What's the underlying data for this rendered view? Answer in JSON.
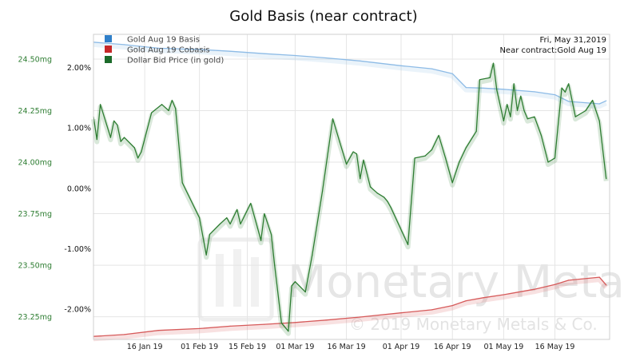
{
  "chart_data": {
    "type": "line",
    "title": "Gold Basis (near contract)",
    "annotation": {
      "date": "Fri, May 31,2019",
      "contract": "Near contract:Gold Aug 19"
    },
    "watermark": {
      "brand": "Monetary Metals",
      "copyright": "© 2019 Monetary Metals & Co."
    },
    "legend_position": "top-left",
    "grid": true,
    "x_axis": {
      "range": [
        "2019-01-01",
        "2019-06-01"
      ],
      "ticks": [
        {
          "date": "2019-01-16",
          "label": "16 Jan 19"
        },
        {
          "date": "2019-02-01",
          "label": "01 Feb 19"
        },
        {
          "date": "2019-02-15",
          "label": "15 Feb 19"
        },
        {
          "date": "2019-03-01",
          "label": "01 Mar 19"
        },
        {
          "date": "2019-03-16",
          "label": "16 Mar 19"
        },
        {
          "date": "2019-04-01",
          "label": "01 Apr 19"
        },
        {
          "date": "2019-04-16",
          "label": "16 Apr 19"
        },
        {
          "date": "2019-05-01",
          "label": "01 May 19"
        },
        {
          "date": "2019-05-16",
          "label": "16 May 19"
        }
      ]
    },
    "y_left": {
      "unit": "mg",
      "range": [
        23.14,
        24.62
      ],
      "ticks": [
        {
          "value": 24.5,
          "label": "24.50mg"
        },
        {
          "value": 24.25,
          "label": "24.25mg"
        },
        {
          "value": 24.0,
          "label": "24.00mg"
        },
        {
          "value": 23.75,
          "label": "23.75mg"
        },
        {
          "value": 23.5,
          "label": "23.50mg"
        },
        {
          "value": 23.25,
          "label": "23.25mg"
        }
      ]
    },
    "y_right": {
      "unit": "%",
      "range": [
        -2.5,
        2.55
      ],
      "ticks": [
        {
          "value": 2.0,
          "label": "2.00%"
        },
        {
          "value": 1.0,
          "label": "1.00%"
        },
        {
          "value": 0.0,
          "label": "0.00%"
        },
        {
          "value": -1.0,
          "label": "-1.00%"
        },
        {
          "value": -2.0,
          "label": "-2.00%"
        }
      ]
    },
    "colors": {
      "left_axis_text": "#2e7d32",
      "right_axis_text": "#111111",
      "grid": "#e5e5e5"
    },
    "series": [
      {
        "name": "Gold Aug 19 Basis",
        "color": "#2f7fc9",
        "line_color": "#8dbbe6",
        "axis": "right",
        "points": [
          [
            "2019-01-01",
            2.42
          ],
          [
            "2019-01-10",
            2.38
          ],
          [
            "2019-01-20",
            2.32
          ],
          [
            "2019-02-01",
            2.3
          ],
          [
            "2019-02-10",
            2.27
          ],
          [
            "2019-02-20",
            2.23
          ],
          [
            "2019-03-01",
            2.2
          ],
          [
            "2019-03-10",
            2.16
          ],
          [
            "2019-03-20",
            2.11
          ],
          [
            "2019-04-01",
            2.03
          ],
          [
            "2019-04-10",
            1.98
          ],
          [
            "2019-04-16",
            1.9
          ],
          [
            "2019-04-20",
            1.67
          ],
          [
            "2019-04-25",
            1.66
          ],
          [
            "2019-05-01",
            1.64
          ],
          [
            "2019-05-10",
            1.6
          ],
          [
            "2019-05-16",
            1.55
          ],
          [
            "2019-05-20",
            1.44
          ],
          [
            "2019-05-29",
            1.4
          ],
          [
            "2019-05-31",
            1.45
          ]
        ]
      },
      {
        "name": "Gold Aug 19 Cobasis",
        "color": "#c62828",
        "line_color": "#d65a5a",
        "axis": "right",
        "points": [
          [
            "2019-01-01",
            -2.45
          ],
          [
            "2019-01-10",
            -2.42
          ],
          [
            "2019-01-20",
            -2.35
          ],
          [
            "2019-02-01",
            -2.32
          ],
          [
            "2019-02-10",
            -2.28
          ],
          [
            "2019-02-20",
            -2.25
          ],
          [
            "2019-03-01",
            -2.22
          ],
          [
            "2019-03-10",
            -2.18
          ],
          [
            "2019-03-20",
            -2.13
          ],
          [
            "2019-04-01",
            -2.06
          ],
          [
            "2019-04-10",
            -2.01
          ],
          [
            "2019-04-16",
            -1.94
          ],
          [
            "2019-04-20",
            -1.86
          ],
          [
            "2019-04-25",
            -1.81
          ],
          [
            "2019-05-01",
            -1.76
          ],
          [
            "2019-05-10",
            -1.67
          ],
          [
            "2019-05-16",
            -1.59
          ],
          [
            "2019-05-20",
            -1.52
          ],
          [
            "2019-05-29",
            -1.47
          ],
          [
            "2019-05-31",
            -1.6
          ]
        ]
      },
      {
        "name": "Dollar Bid Price (in gold)",
        "color": "#1b6b2a",
        "line_color": "#2e7d32",
        "axis": "left",
        "points": [
          [
            "2019-01-01",
            24.22
          ],
          [
            "2019-01-02",
            24.11
          ],
          [
            "2019-01-03",
            24.28
          ],
          [
            "2019-01-06",
            24.12
          ],
          [
            "2019-01-07",
            24.2
          ],
          [
            "2019-01-08",
            24.18
          ],
          [
            "2019-01-09",
            24.1
          ],
          [
            "2019-01-10",
            24.12
          ],
          [
            "2019-01-13",
            24.07
          ],
          [
            "2019-01-14",
            24.02
          ],
          [
            "2019-01-15",
            24.05
          ],
          [
            "2019-01-18",
            24.24
          ],
          [
            "2019-01-21",
            24.28
          ],
          [
            "2019-01-23",
            24.25
          ],
          [
            "2019-01-24",
            24.3
          ],
          [
            "2019-01-25",
            24.26
          ],
          [
            "2019-01-27",
            23.9
          ],
          [
            "2019-02-01",
            23.73
          ],
          [
            "2019-02-03",
            23.55
          ],
          [
            "2019-02-04",
            23.65
          ],
          [
            "2019-02-07",
            23.7
          ],
          [
            "2019-02-09",
            23.73
          ],
          [
            "2019-02-10",
            23.7
          ],
          [
            "2019-02-12",
            23.77
          ],
          [
            "2019-02-13",
            23.7
          ],
          [
            "2019-02-16",
            23.8
          ],
          [
            "2019-02-18",
            23.68
          ],
          [
            "2019-02-19",
            23.62
          ],
          [
            "2019-02-20",
            23.75
          ],
          [
            "2019-02-22",
            23.65
          ],
          [
            "2019-02-23",
            23.5
          ],
          [
            "2019-02-25",
            23.22
          ],
          [
            "2019-02-27",
            23.18
          ],
          [
            "2019-02-28",
            23.4
          ],
          [
            "2019-03-01",
            23.42
          ],
          [
            "2019-03-04",
            23.37
          ],
          [
            "2019-03-06",
            23.55
          ],
          [
            "2019-03-09",
            23.86
          ],
          [
            "2019-03-12",
            24.21
          ],
          [
            "2019-03-14",
            24.1
          ],
          [
            "2019-03-16",
            23.99
          ],
          [
            "2019-03-18",
            24.05
          ],
          [
            "2019-03-19",
            24.04
          ],
          [
            "2019-03-20",
            23.92
          ],
          [
            "2019-03-21",
            24.01
          ],
          [
            "2019-03-23",
            23.88
          ],
          [
            "2019-03-25",
            23.85
          ],
          [
            "2019-03-27",
            23.83
          ],
          [
            "2019-03-28",
            23.81
          ],
          [
            "2019-03-29",
            23.78
          ],
          [
            "2019-04-03",
            23.6
          ],
          [
            "2019-04-05",
            24.02
          ],
          [
            "2019-04-08",
            24.03
          ],
          [
            "2019-04-10",
            24.06
          ],
          [
            "2019-04-12",
            24.13
          ],
          [
            "2019-04-14",
            24.02
          ],
          [
            "2019-04-16",
            23.9
          ],
          [
            "2019-04-18",
            24.0
          ],
          [
            "2019-04-20",
            24.07
          ],
          [
            "2019-04-23",
            24.15
          ],
          [
            "2019-04-24",
            24.4
          ],
          [
            "2019-04-27",
            24.41
          ],
          [
            "2019-04-28",
            24.48
          ],
          [
            "2019-04-29",
            24.35
          ],
          [
            "2019-05-01",
            24.2
          ],
          [
            "2019-05-02",
            24.28
          ],
          [
            "2019-05-03",
            24.22
          ],
          [
            "2019-05-04",
            24.38
          ],
          [
            "2019-05-05",
            24.25
          ],
          [
            "2019-05-06",
            24.32
          ],
          [
            "2019-05-07",
            24.25
          ],
          [
            "2019-05-08",
            24.21
          ],
          [
            "2019-05-10",
            24.22
          ],
          [
            "2019-05-12",
            24.13
          ],
          [
            "2019-05-14",
            24.0
          ],
          [
            "2019-05-16",
            24.02
          ],
          [
            "2019-05-18",
            24.36
          ],
          [
            "2019-05-19",
            24.34
          ],
          [
            "2019-05-20",
            24.38
          ],
          [
            "2019-05-22",
            24.22
          ],
          [
            "2019-05-25",
            24.25
          ],
          [
            "2019-05-27",
            24.3
          ],
          [
            "2019-05-29",
            24.2
          ],
          [
            "2019-05-31",
            23.92
          ]
        ]
      }
    ]
  }
}
